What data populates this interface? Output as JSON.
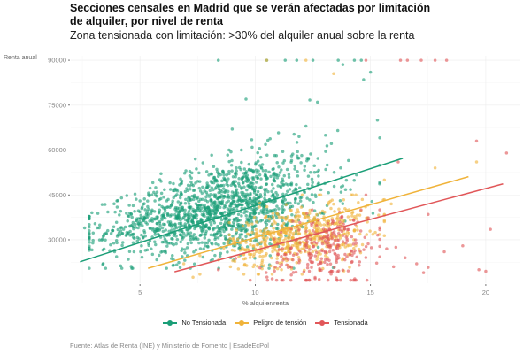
{
  "chart_data": {
    "type": "scatter",
    "title": "Secciones censales en Madrid que se verán afectadas por limitación de alquiler, por nivel de renta",
    "subtitle": "Zona tensionada con limitación: >30% del alquiler anual sobre la renta",
    "xlabel": "% alquiler/renta",
    "ylabel": "Renta anual",
    "xlim": [
      2.0,
      21.5
    ],
    "ylim": [
      15500,
      91500
    ],
    "x_ticks": [
      5,
      10,
      15,
      20
    ],
    "x_tick_labels": [
      "5",
      "10",
      "15",
      "20"
    ],
    "y_ticks": [
      30000,
      45000,
      60000,
      75000,
      90000
    ],
    "y_tick_labels": [
      "30000",
      "45000",
      "60000",
      "75000",
      "90000"
    ],
    "grid": true,
    "legend_position": "bottom",
    "series": [
      {
        "name": "No Tensionada",
        "color": "#1a9e77",
        "count": 1500,
        "cluster": {
          "x_mean": 8.4,
          "x_sd": 2.4,
          "x_min": 2.8,
          "x_max": 15.4,
          "y_base": 27500,
          "y_slope": 1500,
          "y_sd": 6200,
          "y_min": 20500,
          "y_max": 90000
        },
        "trend": {
          "x": [
            2.4,
            16.4
          ],
          "y": [
            22650,
            57240
          ]
        },
        "outliers": [
          [
            2.6,
            34000
          ],
          [
            4.0,
            43000
          ],
          [
            4.2,
            44000
          ],
          [
            6.8,
            49000
          ],
          [
            8.3,
            50000
          ],
          [
            7.4,
            57000
          ],
          [
            9.4,
            60000
          ],
          [
            9.0,
            67000
          ],
          [
            9.6,
            77000
          ],
          [
            8.4,
            90000
          ],
          [
            10.5,
            90000
          ],
          [
            11.3,
            90000
          ],
          [
            11.8,
            90000
          ],
          [
            12.5,
            90000
          ],
          [
            13.6,
            90000
          ],
          [
            14.3,
            90000
          ],
          [
            14.6,
            90000
          ],
          [
            13.8,
            88500
          ],
          [
            15.0,
            86000
          ],
          [
            14.7,
            83500
          ],
          [
            12.7,
            76000
          ],
          [
            15.3,
            70000
          ],
          [
            12.2,
            68000
          ]
        ]
      },
      {
        "name": "Peligro de tensión",
        "color": "#f0b33a",
        "count": 560,
        "cluster": {
          "x_mean": 11.9,
          "x_sd": 1.5,
          "x_min": 7.6,
          "x_max": 15.6,
          "y_base": 15500,
          "y_slope": 1350,
          "y_sd": 3600,
          "y_min": 18500,
          "y_max": 45000
        },
        "trend": {
          "x": [
            5.35,
            19.25
          ],
          "y": [
            20500,
            51100
          ]
        },
        "outliers": [
          [
            7.3,
            17500
          ],
          [
            6.9,
            22000
          ],
          [
            12.2,
            90000
          ],
          [
            10.5,
            90000
          ],
          [
            13.4,
            85500
          ],
          [
            17.8,
            54000
          ],
          [
            19.6,
            56000
          ],
          [
            15.6,
            50000
          ],
          [
            15.9,
            42000
          ],
          [
            14.3,
            33000
          ]
        ]
      },
      {
        "name": "Tensionada",
        "color": "#e15759",
        "count": 260,
        "cluster": {
          "x_mean": 13.0,
          "x_sd": 1.2,
          "x_min": 8.7,
          "x_max": 15.4,
          "y_base": 8500,
          "y_slope": 1400,
          "y_sd": 4200,
          "y_min": 16500,
          "y_max": 40000
        },
        "trend": {
          "x": [
            6.5,
            20.75
          ],
          "y": [
            19300,
            48700
          ]
        },
        "outliers": [
          [
            8.4,
            20000
          ],
          [
            14.8,
            90000
          ],
          [
            16.3,
            90000
          ],
          [
            16.6,
            90000
          ],
          [
            17.2,
            90000
          ],
          [
            17.8,
            90000
          ],
          [
            18.3,
            90000
          ],
          [
            17.5,
            38500
          ],
          [
            16.5,
            24000
          ],
          [
            17.0,
            22000
          ],
          [
            16.0,
            21000
          ],
          [
            17.5,
            20800
          ],
          [
            17.3,
            19000
          ],
          [
            19.7,
            20000
          ],
          [
            20.0,
            19500
          ],
          [
            18.2,
            26000
          ],
          [
            19.0,
            28000
          ],
          [
            20.2,
            33500
          ],
          [
            15.7,
            27000
          ],
          [
            16.1,
            27500
          ],
          [
            19.6,
            63000
          ],
          [
            20.9,
            59000
          ],
          [
            16.2,
            56000
          ],
          [
            14.8,
            45000
          ]
        ]
      }
    ]
  },
  "footer": {
    "source": "Fuente: Atlas de Renta (INE) y Ministerio de Fomento | EsadeEcPol"
  }
}
